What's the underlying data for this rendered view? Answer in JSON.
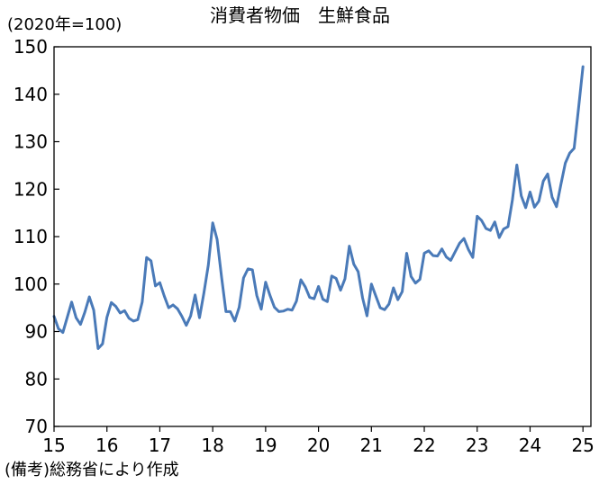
{
  "chart_data": {
    "type": "line",
    "title": "消費者物価　生鮮食品",
    "unit_label": "(2020年=100)",
    "source": "(備考)総務省により作成",
    "xlabel": "",
    "ylabel": "",
    "xlim": [
      2015,
      2025.15
    ],
    "ylim": [
      70,
      150
    ],
    "yticks": [
      70,
      80,
      90,
      100,
      110,
      120,
      130,
      140,
      150
    ],
    "xticks": [
      {
        "value": 2015,
        "label": "15"
      },
      {
        "value": 2016,
        "label": "16"
      },
      {
        "value": 2017,
        "label": "17"
      },
      {
        "value": 2018,
        "label": "18"
      },
      {
        "value": 2019,
        "label": "19"
      },
      {
        "value": 2020,
        "label": "20"
      },
      {
        "value": 2021,
        "label": "21"
      },
      {
        "value": 2022,
        "label": "22"
      },
      {
        "value": 2023,
        "label": "23"
      },
      {
        "value": 2024,
        "label": "24"
      },
      {
        "value": 2025,
        "label": "25"
      }
    ],
    "grid": false,
    "line_color": "#4a7ab8",
    "series": [
      {
        "x": [
          2015.0,
          2015.083,
          2015.167,
          2015.25,
          2015.333,
          2015.417,
          2015.5,
          2015.583,
          2015.667,
          2015.75,
          2015.833,
          2015.917,
          2016.0,
          2016.083,
          2016.167,
          2016.25,
          2016.333,
          2016.417,
          2016.5,
          2016.583,
          2016.667,
          2016.75,
          2016.833,
          2016.917,
          2017.0,
          2017.083,
          2017.167,
          2017.25,
          2017.333,
          2017.417,
          2017.5,
          2017.583,
          2017.667,
          2017.75,
          2017.833,
          2017.917,
          2018.0,
          2018.083,
          2018.167,
          2018.25,
          2018.333,
          2018.417,
          2018.5,
          2018.583,
          2018.667,
          2018.75,
          2018.833,
          2018.917,
          2019.0,
          2019.083,
          2019.167,
          2019.25,
          2019.333,
          2019.417,
          2019.5,
          2019.583,
          2019.667,
          2019.75,
          2019.833,
          2019.917,
          2020.0,
          2020.083,
          2020.167,
          2020.25,
          2020.333,
          2020.417,
          2020.5,
          2020.583,
          2020.667,
          2020.75,
          2020.833,
          2020.917,
          2021.0,
          2021.083,
          2021.167,
          2021.25,
          2021.333,
          2021.417,
          2021.5,
          2021.583,
          2021.667,
          2021.75,
          2021.833,
          2021.917,
          2022.0,
          2022.083,
          2022.167,
          2022.25,
          2022.333,
          2022.417,
          2022.5,
          2022.583,
          2022.667,
          2022.75,
          2022.833,
          2022.917,
          2023.0,
          2023.083,
          2023.167,
          2023.25,
          2023.333,
          2023.417,
          2023.5,
          2023.583,
          2023.667,
          2023.75,
          2023.833,
          2023.917,
          2024.0,
          2024.083,
          2024.167,
          2024.25,
          2024.333,
          2024.417,
          2024.5,
          2024.583,
          2024.667,
          2024.75,
          2024.833,
          2024.917,
          2025.0
        ],
        "y": [
          93.2,
          90.6,
          89.8,
          93.0,
          96.2,
          92.9,
          91.5,
          94.1,
          97.3,
          94.5,
          86.4,
          87.4,
          93.0,
          96.1,
          95.3,
          93.9,
          94.4,
          92.8,
          92.2,
          92.5,
          96.2,
          105.6,
          104.9,
          99.6,
          100.3,
          97.5,
          95.0,
          95.6,
          94.8,
          93.2,
          91.3,
          93.3,
          97.7,
          92.9,
          98.1,
          104.0,
          112.9,
          109.4,
          101.5,
          94.2,
          94.2,
          92.2,
          95.1,
          101.3,
          103.2,
          103.0,
          97.6,
          94.7,
          100.4,
          97.6,
          95.1,
          94.2,
          94.3,
          94.7,
          94.5,
          96.4,
          100.9,
          99.4,
          97.2,
          96.9,
          99.5,
          96.8,
          96.3,
          101.7,
          101.2,
          98.7,
          101.1,
          108.0,
          104.2,
          102.6,
          97.1,
          93.3,
          100.0,
          97.5,
          95.0,
          94.6,
          95.8,
          99.2,
          96.7,
          98.4,
          106.5,
          101.6,
          100.2,
          101.0,
          106.5,
          107.0,
          106.0,
          105.9,
          107.4,
          105.7,
          105.0,
          106.8,
          108.6,
          109.6,
          107.3,
          105.6,
          114.3,
          113.4,
          111.7,
          111.3,
          113.1,
          109.8,
          111.6,
          112.1,
          117.8,
          125.1,
          118.6,
          116.1,
          119.4,
          116.2,
          117.5,
          121.7,
          123.2,
          118.3,
          116.3,
          121.0,
          125.5,
          127.6,
          128.6,
          137.1,
          145.8
        ]
      }
    ]
  }
}
